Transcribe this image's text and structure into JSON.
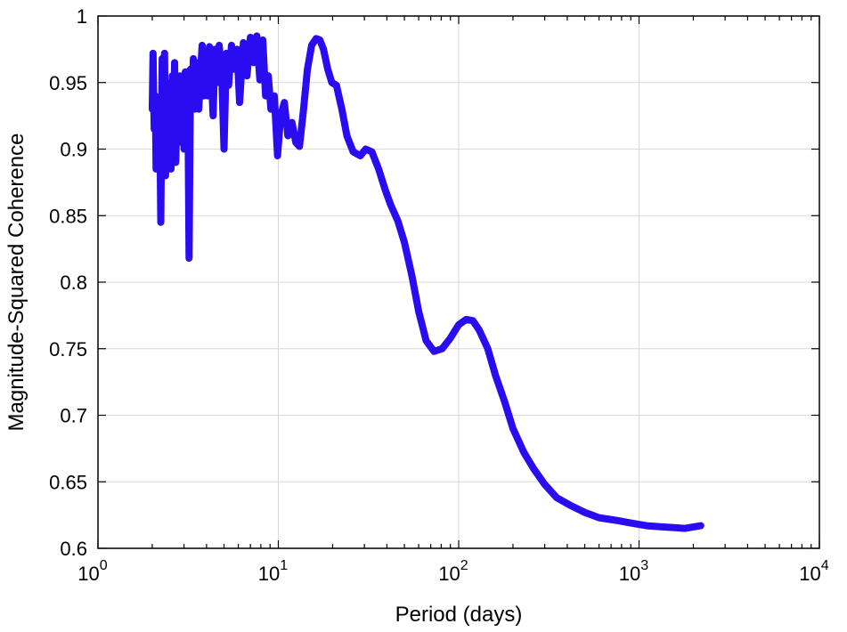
{
  "chart_data": {
    "type": "line",
    "title": "",
    "xlabel": "Period (days)",
    "ylabel": "Magnitude-Squared Coherence",
    "xscale": "log",
    "xlim": [
      1,
      10000
    ],
    "ylim": [
      0.6,
      1.0
    ],
    "grid": true,
    "xticks": [
      {
        "value": 1,
        "base": "10",
        "exp": "0"
      },
      {
        "value": 10,
        "base": "10",
        "exp": "1"
      },
      {
        "value": 100,
        "base": "10",
        "exp": "2"
      },
      {
        "value": 1000,
        "base": "10",
        "exp": "3"
      },
      {
        "value": 10000,
        "base": "10",
        "exp": "4"
      }
    ],
    "yticks": [
      {
        "value": 0.6,
        "label": "0.6"
      },
      {
        "value": 0.65,
        "label": "0.65"
      },
      {
        "value": 0.7,
        "label": "0.7"
      },
      {
        "value": 0.75,
        "label": "0.75"
      },
      {
        "value": 0.8,
        "label": "0.8"
      },
      {
        "value": 0.85,
        "label": "0.85"
      },
      {
        "value": 0.9,
        "label": "0.9"
      },
      {
        "value": 0.95,
        "label": "0.95"
      },
      {
        "value": 1.0,
        "label": "1"
      }
    ],
    "series": [
      {
        "color": "#2a0cf0",
        "x": [
          2.0,
          2.02,
          2.05,
          2.08,
          2.1,
          2.13,
          2.16,
          2.2,
          2.23,
          2.27,
          2.3,
          2.34,
          2.37,
          2.41,
          2.45,
          2.5,
          2.54,
          2.58,
          2.62,
          2.66,
          2.7,
          2.75,
          2.8,
          2.85,
          2.9,
          2.95,
          3.0,
          3.05,
          3.1,
          3.15,
          3.2,
          3.26,
          3.32,
          3.38,
          3.44,
          3.5,
          3.56,
          3.62,
          3.7,
          3.78,
          3.86,
          3.95,
          4.05,
          4.15,
          4.25,
          4.35,
          4.45,
          4.55,
          4.7,
          4.85,
          5.0,
          5.15,
          5.3,
          5.5,
          5.7,
          5.9,
          6.1,
          6.4,
          6.7,
          7.0,
          7.3,
          7.6,
          7.9,
          8.2,
          8.5,
          8.8,
          9.1,
          9.5,
          9.9,
          10.3,
          10.8,
          11.3,
          11.9,
          12.5,
          13.1,
          13.8,
          14.5,
          15.3,
          16.2,
          17.0,
          17.8,
          18.8,
          19.8,
          21.0,
          22.5,
          24.0,
          26.0,
          28.5,
          30.5,
          33.0,
          36.0,
          39.0,
          42.0,
          46.0,
          50.0,
          55.0,
          60.0,
          66.0,
          73.0,
          81.0,
          90.0,
          100.0,
          110.0,
          120.0,
          130.0,
          145.0,
          160.0,
          180.0,
          200.0,
          230.0,
          260.0,
          300.0,
          350.0,
          420.0,
          500.0,
          600.0,
          750.0,
          900.0,
          1100.0,
          1400.0,
          1800.0,
          2200.0
        ],
        "y": [
          0.93,
          0.972,
          0.915,
          0.94,
          0.885,
          0.935,
          0.89,
          0.93,
          0.845,
          0.968,
          0.905,
          0.972,
          0.88,
          0.95,
          0.915,
          0.93,
          0.885,
          0.955,
          0.91,
          0.965,
          0.89,
          0.94,
          0.905,
          0.955,
          0.91,
          0.948,
          0.9,
          0.958,
          0.92,
          0.94,
          0.818,
          0.96,
          0.935,
          0.968,
          0.93,
          0.965,
          0.945,
          0.93,
          0.955,
          0.978,
          0.94,
          0.97,
          0.94,
          0.977,
          0.955,
          0.925,
          0.975,
          0.95,
          0.978,
          0.958,
          0.9,
          0.972,
          0.948,
          0.978,
          0.96,
          0.975,
          0.935,
          0.98,
          0.955,
          0.984,
          0.965,
          0.985,
          0.952,
          0.982,
          0.94,
          0.955,
          0.93,
          0.94,
          0.895,
          0.925,
          0.935,
          0.91,
          0.92,
          0.905,
          0.902,
          0.93,
          0.96,
          0.978,
          0.983,
          0.982,
          0.975,
          0.96,
          0.95,
          0.948,
          0.93,
          0.91,
          0.898,
          0.895,
          0.9,
          0.898,
          0.885,
          0.87,
          0.858,
          0.846,
          0.83,
          0.805,
          0.778,
          0.756,
          0.748,
          0.75,
          0.758,
          0.768,
          0.772,
          0.771,
          0.764,
          0.75,
          0.73,
          0.71,
          0.69,
          0.672,
          0.66,
          0.648,
          0.638,
          0.632,
          0.627,
          0.623,
          0.621,
          0.619,
          0.617,
          0.616,
          0.615,
          0.617
        ]
      }
    ]
  }
}
